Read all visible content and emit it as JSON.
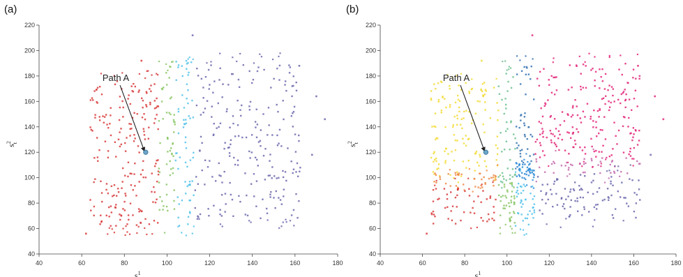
{
  "chart_data": [
    {
      "type": "scatter",
      "panel_label": "(a)",
      "xlabel": {
        "base": "s",
        "sub": "t",
        "sup": "1"
      },
      "ylabel": {
        "base": "s",
        "sub": "t",
        "sup": "2"
      },
      "xlim": [
        40,
        180
      ],
      "ylim": [
        40,
        220
      ],
      "xticks": [
        40,
        60,
        80,
        100,
        120,
        140,
        160,
        180
      ],
      "yticks": [
        40,
        60,
        80,
        100,
        120,
        140,
        160,
        180,
        200,
        220
      ],
      "annotation": {
        "text": "Path A",
        "target": [
          90,
          120
        ],
        "text_pos": [
          76,
          176
        ]
      },
      "marker": {
        "x": 90,
        "y": 120,
        "color": "#6ea5c7"
      },
      "regions": [
        {
          "x": [
            64,
            96
          ],
          "y": [
            62,
            176
          ],
          "color": "#d83b3b"
        },
        {
          "x": [
            96,
            104
          ],
          "y": [
            64,
            184
          ],
          "color": "#8ac565"
        },
        {
          "x": [
            104,
            113
          ],
          "y": [
            62,
            192
          ],
          "color": "#54c2ea"
        },
        {
          "x": [
            113,
            163
          ],
          "y": [
            68,
            190
          ],
          "color": "#6c69ad"
        }
      ],
      "outliers": [
        {
          "x": 88,
          "y": 192,
          "color": "#d83b3b"
        },
        {
          "x": 112,
          "y": 212,
          "color": "#6c69ad"
        },
        {
          "x": 162,
          "y": 188,
          "color": "#6c69ad"
        },
        {
          "x": 170,
          "y": 164,
          "color": "#6c69ad"
        },
        {
          "x": 168,
          "y": 118,
          "color": "#6c69ad"
        },
        {
          "x": 174,
          "y": 146,
          "color": "#6c69ad"
        },
        {
          "x": 62,
          "y": 56,
          "color": "#d83b3b"
        }
      ]
    },
    {
      "type": "scatter",
      "panel_label": "(b)",
      "xlabel": {
        "base": "s",
        "sub": "t",
        "sup": "1"
      },
      "ylabel": {
        "base": "s",
        "sub": "t",
        "sup": "2"
      },
      "xlim": [
        40,
        180
      ],
      "ylim": [
        40,
        220
      ],
      "xticks": [
        40,
        60,
        80,
        100,
        120,
        140,
        160,
        180
      ],
      "yticks": [
        40,
        60,
        80,
        100,
        120,
        140,
        160,
        180,
        200,
        220
      ],
      "annotation": {
        "text": "Path A",
        "target": [
          90,
          120
        ],
        "text_pos": [
          76,
          176
        ]
      },
      "marker": {
        "x": 90,
        "y": 120,
        "color": "#6ea5c7"
      },
      "regions": [
        {
          "x": [
            64,
            96
          ],
          "y": [
            104,
            176
          ],
          "color": "#f3db35"
        },
        {
          "x": [
            64,
            96
          ],
          "y": [
            92,
            104
          ],
          "color": "#ef8a46"
        },
        {
          "x": [
            64,
            96
          ],
          "y": [
            62,
            92
          ],
          "color": "#d83b3b"
        },
        {
          "x": [
            96,
            104
          ],
          "y": [
            96,
            184
          ],
          "color": "#6cbf8e"
        },
        {
          "x": [
            96,
            104
          ],
          "y": [
            64,
            96
          ],
          "color": "#8ac565"
        },
        {
          "x": [
            104,
            113
          ],
          "y": [
            112,
            192
          ],
          "color": "#3673b2"
        },
        {
          "x": [
            104,
            113
          ],
          "y": [
            99,
            112
          ],
          "color": "#2d8ad7"
        },
        {
          "x": [
            104,
            113
          ],
          "y": [
            62,
            99
          ],
          "color": "#54c2ea"
        },
        {
          "x": [
            113,
            163
          ],
          "y": [
            116,
            190
          ],
          "color": "#e3267a"
        },
        {
          "x": [
            113,
            163
          ],
          "y": [
            103,
            116
          ],
          "color": "#c36bab"
        },
        {
          "x": [
            113,
            163
          ],
          "y": [
            68,
            103
          ],
          "color": "#6c69ad"
        }
      ],
      "outliers": [
        {
          "x": 88,
          "y": 192,
          "color": "#f3db35"
        },
        {
          "x": 112,
          "y": 212,
          "color": "#e3267a"
        },
        {
          "x": 162,
          "y": 188,
          "color": "#e3267a"
        },
        {
          "x": 170,
          "y": 164,
          "color": "#e3267a"
        },
        {
          "x": 168,
          "y": 118,
          "color": "#6c69ad"
        },
        {
          "x": 174,
          "y": 146,
          "color": "#e3267a"
        },
        {
          "x": 62,
          "y": 56,
          "color": "#d83b3b"
        }
      ]
    }
  ]
}
